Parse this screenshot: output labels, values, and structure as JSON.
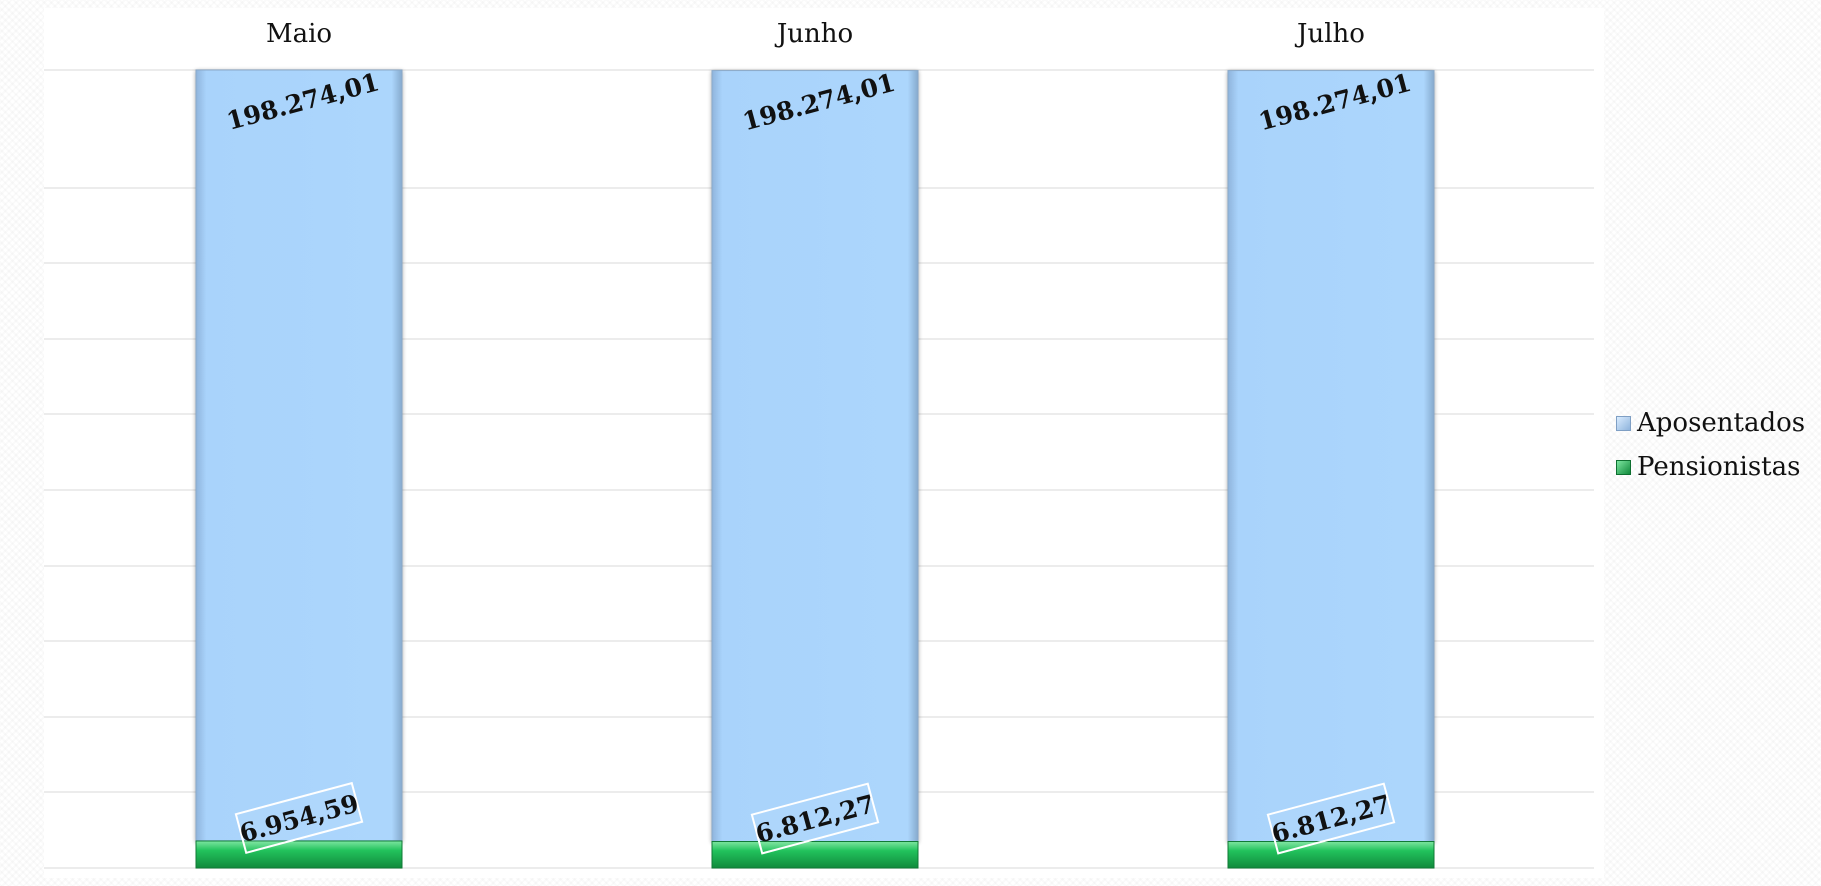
{
  "chart_data": {
    "type": "bar",
    "stacked": true,
    "categories": [
      "Maio",
      "Junho",
      "Julho"
    ],
    "series": [
      {
        "name": "Aposentados",
        "values": [
          198274.01,
          198274.01,
          198274.01
        ],
        "labels": [
          "198.274,01",
          "198.274,01",
          "198.274,01"
        ],
        "color": "#acd6fc"
      },
      {
        "name": "Pensionistas",
        "values": [
          6954.59,
          6812.27,
          6812.27
        ],
        "labels": [
          "6.954,59",
          "6.812,27",
          "6.812,27"
        ],
        "color": "#1fb554"
      }
    ],
    "ylim": [
      0,
      205228.6
    ],
    "grid": true,
    "category_axis_position": "top",
    "legend_position": "right"
  }
}
